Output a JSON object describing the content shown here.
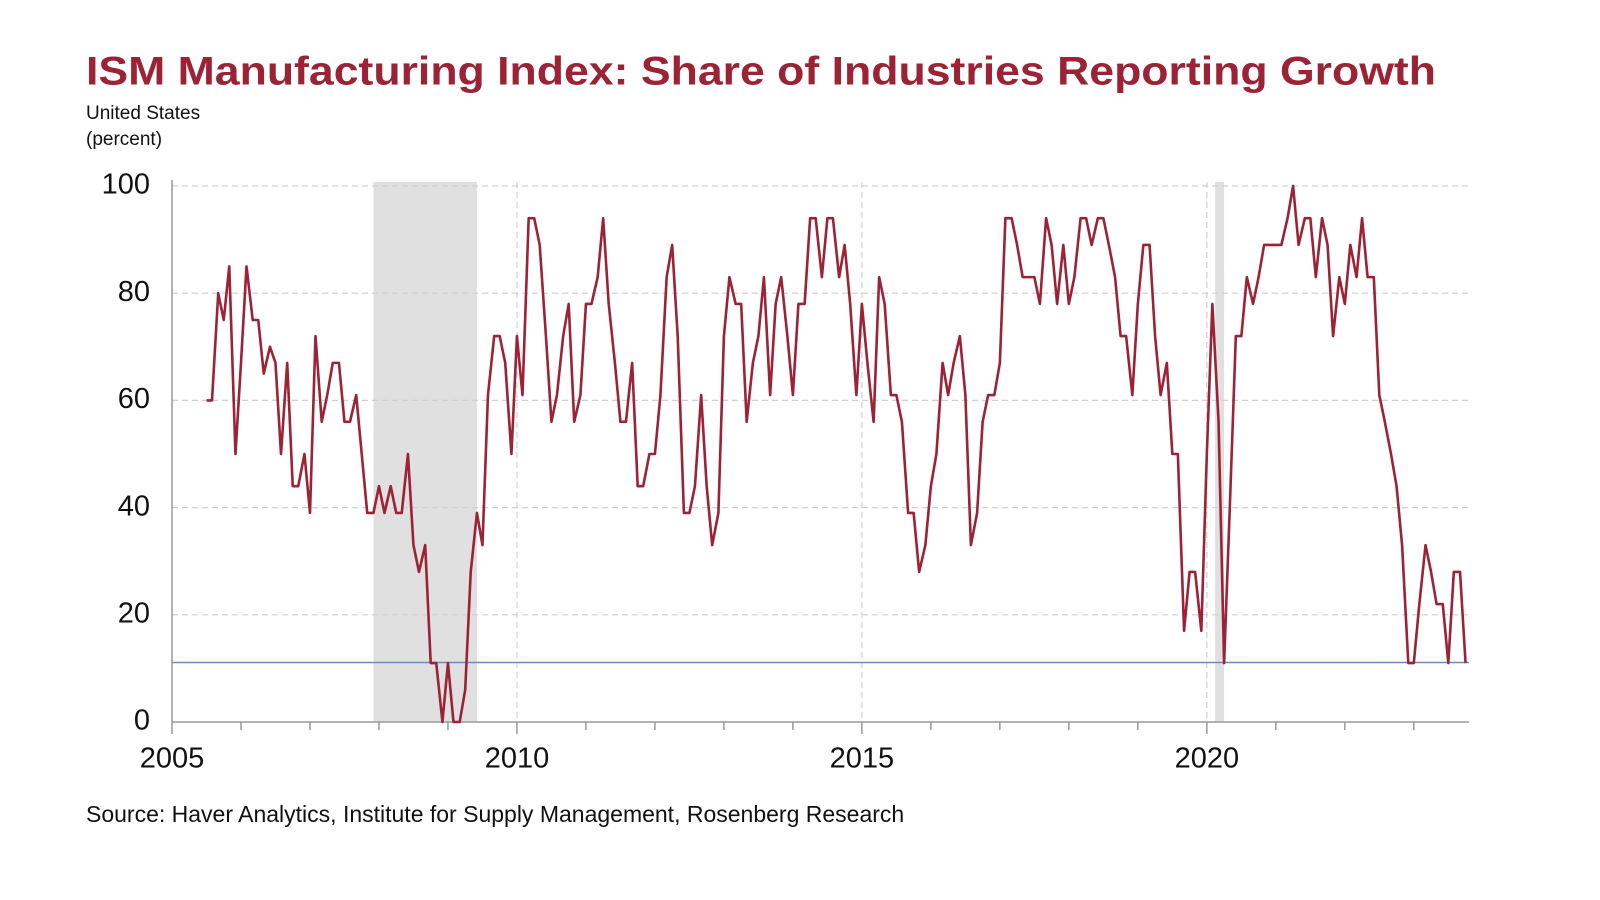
{
  "chart_data": {
    "type": "line",
    "title": "ISM Manufacturing Index: Share of Industries Reporting Growth",
    "subtitle": "United States",
    "y_label": "(percent)",
    "source": "Source: Haver Analytics, Institute for Supply Management, Rosenberg Research",
    "x": [
      2005.5,
      2005.58,
      2005.67,
      2005.75,
      2005.83,
      2005.92,
      2006,
      2006.08,
      2006.17,
      2006.25,
      2006.33,
      2006.42,
      2006.5,
      2006.58,
      2006.67,
      2006.75,
      2006.83,
      2006.92,
      2007,
      2007.08,
      2007.17,
      2007.25,
      2007.33,
      2007.42,
      2007.5,
      2007.58,
      2007.67,
      2007.75,
      2007.83,
      2007.92,
      2008,
      2008.08,
      2008.17,
      2008.25,
      2008.33,
      2008.42,
      2008.5,
      2008.58,
      2008.67,
      2008.75,
      2008.83,
      2008.92,
      2009,
      2009.08,
      2009.17,
      2009.25,
      2009.33,
      2009.42,
      2009.5,
      2009.58,
      2009.67,
      2009.75,
      2009.83,
      2009.92,
      2010,
      2010.08,
      2010.17,
      2010.25,
      2010.33,
      2010.42,
      2010.5,
      2010.58,
      2010.67,
      2010.75,
      2010.83,
      2010.92,
      2011,
      2011.08,
      2011.17,
      2011.25,
      2011.33,
      2011.42,
      2011.5,
      2011.58,
      2011.67,
      2011.75,
      2011.83,
      2011.92,
      2012,
      2012.08,
      2012.17,
      2012.25,
      2012.33,
      2012.42,
      2012.5,
      2012.58,
      2012.67,
      2012.75,
      2012.83,
      2012.92,
      2013,
      2013.08,
      2013.17,
      2013.25,
      2013.33,
      2013.42,
      2013.5,
      2013.58,
      2013.67,
      2013.75,
      2013.83,
      2013.92,
      2014,
      2014.08,
      2014.17,
      2014.25,
      2014.33,
      2014.42,
      2014.5,
      2014.58,
      2014.67,
      2014.75,
      2014.83,
      2014.92,
      2015,
      2015.08,
      2015.17,
      2015.25,
      2015.33,
      2015.42,
      2015.5,
      2015.58,
      2015.67,
      2015.75,
      2015.83,
      2015.92,
      2016,
      2016.08,
      2016.17,
      2016.25,
      2016.33,
      2016.42,
      2016.5,
      2016.58,
      2016.67,
      2016.75,
      2016.83,
      2016.92,
      2017,
      2017.08,
      2017.17,
      2017.25,
      2017.33,
      2017.42,
      2017.5,
      2017.58,
      2017.67,
      2017.75,
      2017.83,
      2017.92,
      2018,
      2018.08,
      2018.17,
      2018.25,
      2018.33,
      2018.42,
      2018.5,
      2018.58,
      2018.67,
      2018.75,
      2018.83,
      2018.92,
      2019,
      2019.08,
      2019.17,
      2019.25,
      2019.33,
      2019.42,
      2019.5,
      2019.58,
      2019.67,
      2019.75,
      2019.83,
      2019.92,
      2020,
      2020.08,
      2020.17,
      2020.25,
      2020.33,
      2020.42,
      2020.5,
      2020.58,
      2020.67,
      2020.75,
      2020.83,
      2020.92,
      2021,
      2021.08,
      2021.17,
      2021.25,
      2021.33,
      2021.42,
      2021.5,
      2021.58,
      2021.67,
      2021.75,
      2021.83,
      2021.92,
      2022,
      2022.08,
      2022.17,
      2022.25,
      2022.33,
      2022.42,
      2022.5,
      2022.58,
      2022.67,
      2022.75,
      2022.83,
      2022.92,
      2023,
      2023.08,
      2023.17,
      2023.25,
      2023.33,
      2023.42,
      2023.5,
      2023.58,
      2023.67,
      2023.75
    ],
    "series": [
      {
        "name": "Share of Industries Reporting Growth",
        "color": "#9b2335",
        "values": [
          60,
          60,
          80,
          75,
          85,
          50,
          67,
          85,
          75,
          75,
          65,
          70,
          67,
          50,
          67,
          44,
          44,
          50,
          39,
          72,
          56,
          61,
          67,
          67,
          56,
          56,
          61,
          50,
          39,
          39,
          44,
          39,
          44,
          39,
          39,
          50,
          33,
          28,
          33,
          11,
          11,
          0,
          11,
          0,
          0,
          6,
          28,
          39,
          33,
          61,
          72,
          72,
          67,
          50,
          72,
          61,
          94,
          94,
          89,
          72,
          56,
          61,
          72,
          78,
          56,
          61,
          78,
          78,
          83,
          94,
          78,
          67,
          56,
          56,
          67,
          44,
          44,
          50,
          50,
          61,
          83,
          89,
          72,
          39,
          39,
          44,
          61,
          44,
          33,
          39,
          72,
          83,
          78,
          78,
          56,
          67,
          72,
          83,
          61,
          78,
          83,
          72,
          61,
          78,
          78,
          94,
          94,
          83,
          94,
          94,
          83,
          89,
          78,
          61,
          78,
          67,
          56,
          83,
          78,
          61,
          61,
          56,
          39,
          39,
          28,
          33,
          44,
          50,
          67,
          61,
          67,
          72,
          61,
          33,
          39,
          56,
          61,
          61,
          67,
          94,
          94,
          89,
          83,
          83,
          83,
          78,
          94,
          89,
          78,
          89,
          78,
          83,
          94,
          94,
          89,
          94,
          94,
          89,
          83,
          72,
          72,
          61,
          78,
          89,
          89,
          72,
          61,
          67,
          50,
          50,
          17,
          28,
          28,
          17,
          50,
          78,
          56,
          11,
          39,
          72,
          72,
          83,
          78,
          83,
          89,
          89,
          89,
          89,
          94,
          100,
          89,
          94,
          94,
          83,
          94,
          89,
          72,
          83,
          78,
          89,
          83,
          94,
          83,
          83,
          61,
          56,
          50,
          44,
          33,
          11,
          11,
          22,
          33,
          28,
          22,
          22,
          11,
          28,
          28,
          11
        ]
      }
    ],
    "xlim": [
      2005,
      2023.8
    ],
    "xticks": [
      2005,
      2010,
      2015,
      2020
    ],
    "x_minor_ticks": [
      2006,
      2007,
      2008,
      2009,
      2011,
      2012,
      2013,
      2014,
      2016,
      2017,
      2018,
      2019,
      2021,
      2022,
      2023
    ],
    "ylim": [
      0,
      100
    ],
    "yticks": [
      0,
      20,
      40,
      60,
      80,
      100
    ],
    "grid": true,
    "shaded_periods": [
      [
        2007.92,
        2009.42
      ],
      [
        2020.12,
        2020.25
      ]
    ],
    "shade_color": "#e0e0e0",
    "reference_line": 11.1,
    "reference_color": "#6b8cba"
  }
}
